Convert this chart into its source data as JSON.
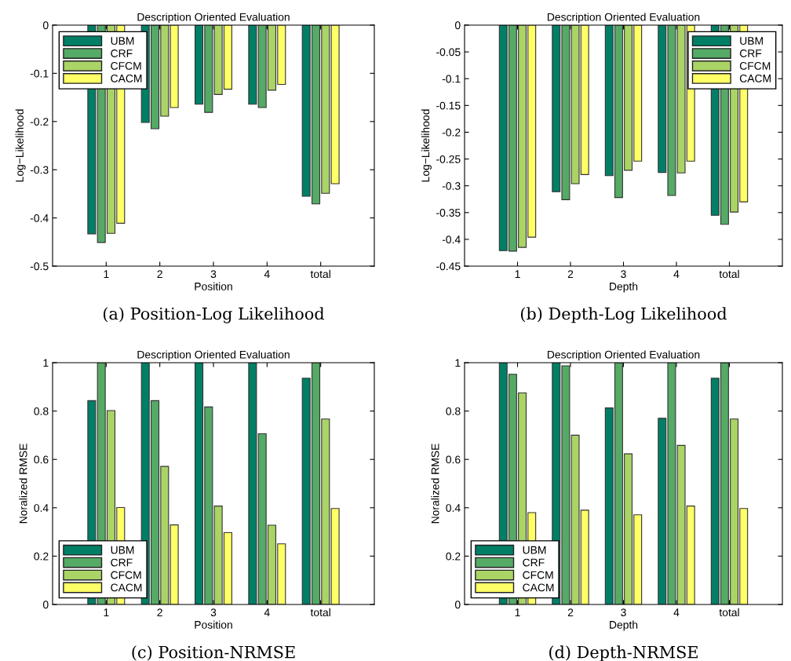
{
  "chart_data": [
    {
      "type": "bar",
      "title": "Description Oriented Evaluation",
      "xlabel": "Position",
      "ylabel": "Log−Likelihood",
      "categories": [
        "1",
        "2",
        "3",
        "4",
        "total"
      ],
      "ylim": [
        -0.5,
        0
      ],
      "yticks": [
        -0.5,
        -0.4,
        -0.3,
        -0.2,
        -0.1,
        0
      ],
      "legend": "top left",
      "grid": false,
      "annotations": [
        "(a) Position-Log Likelihood"
      ],
      "series": [
        {
          "name": "UBM",
          "color": "#007f66",
          "values": [
            -0.433,
            -0.202,
            -0.164,
            -0.164,
            -0.355
          ]
        },
        {
          "name": "CRF",
          "color": "#55aa66",
          "values": [
            -0.451,
            -0.215,
            -0.181,
            -0.171,
            -0.371
          ]
        },
        {
          "name": "CFCM",
          "color": "#aad466",
          "values": [
            -0.432,
            -0.189,
            -0.144,
            -0.135,
            -0.349
          ]
        },
        {
          "name": "CACM",
          "color": "#ffff66",
          "values": [
            -0.411,
            -0.171,
            -0.133,
            -0.123,
            -0.329
          ]
        }
      ]
    },
    {
      "type": "bar",
      "title": "Description Oriented Evaluation",
      "xlabel": "Depth",
      "ylabel": "Log−Likelihood",
      "categories": [
        "1",
        "2",
        "3",
        "4",
        "total"
      ],
      "ylim": [
        -0.45,
        0
      ],
      "yticks": [
        -0.45,
        -0.4,
        -0.35,
        -0.3,
        -0.25,
        -0.2,
        -0.15,
        -0.1,
        -0.05,
        0
      ],
      "legend": "top right",
      "grid": false,
      "annotations": [
        "(b) Depth-Log Likelihood"
      ],
      "series": [
        {
          "name": "UBM",
          "color": "#007f66",
          "values": [
            -0.421,
            -0.311,
            -0.281,
            -0.275,
            -0.355
          ]
        },
        {
          "name": "CRF",
          "color": "#55aa66",
          "values": [
            -0.422,
            -0.326,
            -0.322,
            -0.318,
            -0.372
          ]
        },
        {
          "name": "CFCM",
          "color": "#aad466",
          "values": [
            -0.415,
            -0.296,
            -0.271,
            -0.276,
            -0.349
          ]
        },
        {
          "name": "CACM",
          "color": "#ffff66",
          "values": [
            -0.396,
            -0.279,
            -0.254,
            -0.254,
            -0.33
          ]
        }
      ]
    },
    {
      "type": "bar",
      "title": "Description Oriented Evaluation",
      "xlabel": "Position",
      "ylabel": "Noralized RMSE",
      "categories": [
        "1",
        "2",
        "3",
        "4",
        "total"
      ],
      "ylim": [
        0,
        1
      ],
      "yticks": [
        0,
        0.2,
        0.4,
        0.6,
        0.8,
        1
      ],
      "legend": "bottom left",
      "grid": false,
      "annotations": [
        "(c) Position-NRMSE"
      ],
      "series": [
        {
          "name": "UBM",
          "color": "#007f66",
          "values": [
            0.843,
            1,
            1,
            1,
            0.936
          ]
        },
        {
          "name": "CRF",
          "color": "#55aa66",
          "values": [
            1,
            0.843,
            0.817,
            0.706,
            1
          ]
        },
        {
          "name": "CFCM",
          "color": "#aad466",
          "values": [
            0.802,
            0.571,
            0.407,
            0.328,
            0.767
          ]
        },
        {
          "name": "CACM",
          "color": "#ffff66",
          "values": [
            0.401,
            0.329,
            0.297,
            0.251,
            0.397
          ]
        }
      ]
    },
    {
      "type": "bar",
      "title": "Description Oriented Evaluation",
      "xlabel": "Depth",
      "ylabel": "Noralized RMSE",
      "categories": [
        "1",
        "2",
        "3",
        "4",
        "total"
      ],
      "ylim": [
        0,
        1
      ],
      "yticks": [
        0,
        0.2,
        0.4,
        0.6,
        0.8,
        1
      ],
      "legend": "bottom left",
      "grid": false,
      "annotations": [
        "(d) Depth-NRMSE"
      ],
      "series": [
        {
          "name": "UBM",
          "color": "#007f66",
          "values": [
            1,
            1,
            0.813,
            0.77,
            0.936
          ]
        },
        {
          "name": "CRF",
          "color": "#55aa66",
          "values": [
            0.952,
            0.987,
            1,
            1,
            1
          ]
        },
        {
          "name": "CFCM",
          "color": "#aad466",
          "values": [
            0.875,
            0.7,
            0.623,
            0.658,
            0.767
          ]
        },
        {
          "name": "CACM",
          "color": "#ffff66",
          "values": [
            0.38,
            0.39,
            0.371,
            0.407,
            0.397
          ]
        }
      ]
    }
  ]
}
